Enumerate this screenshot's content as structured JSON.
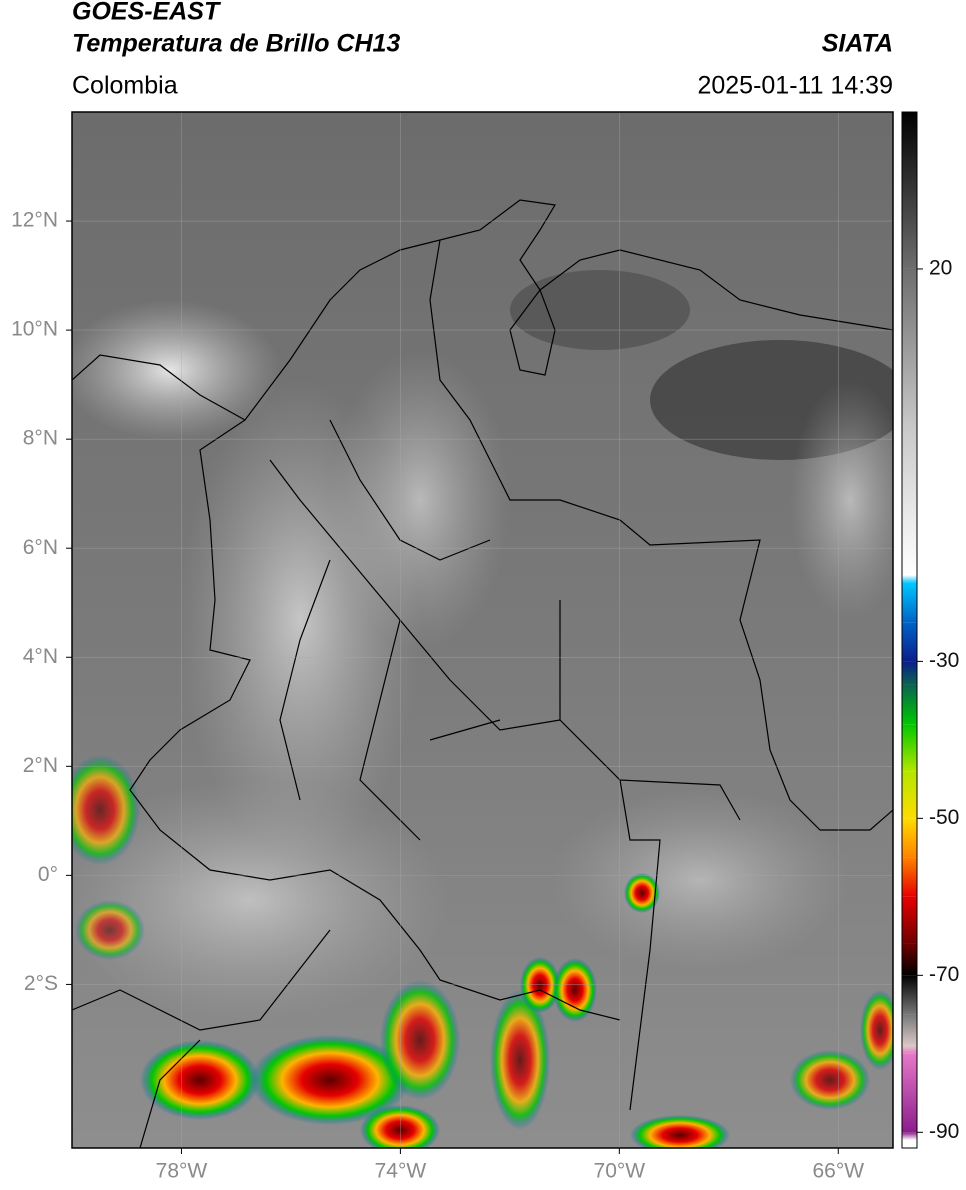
{
  "header": {
    "satellite": "GOES-EAST",
    "product": "Temperatura de Brillo CH13",
    "region": "Colombia",
    "source": "SIATA",
    "datetime": "2025-01-11 14:39"
  },
  "map": {
    "xlim": [
      -80,
      -65
    ],
    "ylim": [
      -5,
      14
    ],
    "xticks": [
      {
        "value": -78,
        "label": "78°W"
      },
      {
        "value": -74,
        "label": "74°W"
      },
      {
        "value": -70,
        "label": "70°W"
      },
      {
        "value": -66,
        "label": "66°W"
      }
    ],
    "yticks": [
      {
        "value": 12,
        "label": "12°N"
      },
      {
        "value": 10,
        "label": "10°N"
      },
      {
        "value": 8,
        "label": "8°N"
      },
      {
        "value": 6,
        "label": "6°N"
      },
      {
        "value": 4,
        "label": "4°N"
      },
      {
        "value": 2,
        "label": "2°N"
      },
      {
        "value": 0,
        "label": "0°"
      },
      {
        "value": -2,
        "label": "2°S"
      }
    ],
    "grid": true
  },
  "colorbar": {
    "lim": [
      -92,
      40
    ],
    "ticks": [
      20,
      -30,
      -50,
      -70,
      -90
    ],
    "stops": [
      {
        "value": 40,
        "color": "#000000"
      },
      {
        "value": 20,
        "color": "#6e6e6e"
      },
      {
        "value": 0,
        "color": "#c8c8c8"
      },
      {
        "value": -19,
        "color": "#ffffff"
      },
      {
        "value": -20,
        "color": "#00c8ff"
      },
      {
        "value": -25,
        "color": "#0064c8"
      },
      {
        "value": -30,
        "color": "#0a1e8c"
      },
      {
        "value": -33,
        "color": "#0a6450"
      },
      {
        "value": -38,
        "color": "#00c800"
      },
      {
        "value": -44,
        "color": "#b4e600"
      },
      {
        "value": -50,
        "color": "#ffdc00"
      },
      {
        "value": -55,
        "color": "#ff8200"
      },
      {
        "value": -60,
        "color": "#e60000"
      },
      {
        "value": -66,
        "color": "#6e0000"
      },
      {
        "value": -70,
        "color": "#000000"
      },
      {
        "value": -75,
        "color": "#787878"
      },
      {
        "value": -79,
        "color": "#dcc8c8"
      },
      {
        "value": -80,
        "color": "#e678c8"
      },
      {
        "value": -90,
        "color": "#8c1e8c"
      },
      {
        "value": -91,
        "color": "#ffffff"
      }
    ]
  }
}
